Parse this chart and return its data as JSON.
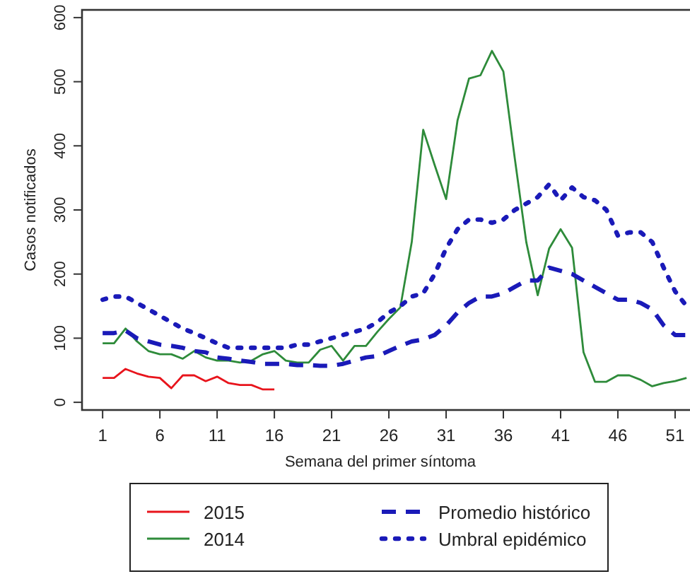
{
  "chart_data": {
    "type": "line",
    "xlabel": "Semana del primer síntoma",
    "ylabel": "Casos notificados",
    "xlim": [
      -0.8,
      52.3
    ],
    "xticks": [
      1,
      6,
      11,
      16,
      21,
      26,
      31,
      36,
      41,
      46,
      51
    ],
    "ylim": [
      -12,
      612
    ],
    "yticks": [
      0,
      100,
      200,
      300,
      400,
      500,
      600
    ],
    "grid": false,
    "legend": "bottom",
    "series": [
      {
        "name": "2015",
        "color": "#e8141c",
        "line_style": "solid",
        "x": [
          1,
          2,
          3,
          4,
          5,
          6,
          7,
          8,
          9,
          10,
          11,
          12,
          13,
          14,
          15,
          16
        ],
        "values": [
          38,
          38,
          52,
          45,
          40,
          38,
          22,
          42,
          42,
          33,
          40,
          30,
          27,
          27,
          20,
          20
        ]
      },
      {
        "name": "2014",
        "color": "#2e8b3a",
        "line_style": "solid",
        "x": [
          1,
          2,
          3,
          4,
          5,
          6,
          7,
          8,
          9,
          10,
          11,
          12,
          13,
          14,
          15,
          16,
          17,
          18,
          19,
          20,
          21,
          22,
          23,
          24,
          25,
          26,
          27,
          28,
          29,
          30,
          31,
          32,
          33,
          34,
          35,
          36,
          37,
          38,
          39,
          40,
          41,
          42,
          43,
          44,
          45,
          46,
          47,
          48,
          49,
          50,
          51,
          52
        ],
        "values": [
          92,
          92,
          115,
          95,
          80,
          75,
          75,
          68,
          80,
          70,
          65,
          65,
          62,
          65,
          75,
          80,
          65,
          62,
          62,
          82,
          88,
          65,
          88,
          88,
          110,
          130,
          148,
          250,
          425,
          370,
          317,
          440,
          505,
          510,
          548,
          516,
          380,
          250,
          167,
          240,
          270,
          241,
          78,
          32,
          32,
          42,
          42,
          35,
          25,
          30,
          33,
          38
        ]
      },
      {
        "name": "Promedio histórico",
        "color": "#1a1ab8",
        "line_style": "dashed",
        "x": [
          1,
          2,
          3,
          4,
          5,
          6,
          7,
          8,
          9,
          10,
          11,
          12,
          13,
          14,
          15,
          16,
          17,
          18,
          19,
          20,
          21,
          22,
          23,
          24,
          25,
          26,
          27,
          28,
          29,
          30,
          31,
          32,
          33,
          34,
          35,
          36,
          37,
          38,
          39,
          40,
          41,
          42,
          43,
          44,
          45,
          46,
          47,
          48,
          49,
          50,
          51,
          52
        ],
        "values": [
          108,
          108,
          112,
          100,
          95,
          90,
          88,
          85,
          80,
          78,
          70,
          68,
          65,
          63,
          60,
          60,
          60,
          58,
          58,
          57,
          57,
          60,
          65,
          70,
          72,
          80,
          88,
          95,
          98,
          105,
          120,
          140,
          155,
          165,
          165,
          170,
          180,
          190,
          190,
          210,
          205,
          200,
          190,
          180,
          170,
          160,
          160,
          155,
          145,
          120,
          105,
          105
        ]
      },
      {
        "name": "Umbral epidémico",
        "color": "#1a1ab8",
        "line_style": "dotted",
        "x": [
          1,
          2,
          3,
          4,
          5,
          6,
          7,
          8,
          9,
          10,
          11,
          12,
          13,
          14,
          15,
          16,
          17,
          18,
          19,
          20,
          21,
          22,
          23,
          24,
          25,
          26,
          27,
          28,
          29,
          30,
          31,
          32,
          33,
          34,
          35,
          36,
          37,
          38,
          39,
          40,
          41,
          42,
          43,
          44,
          45,
          46,
          47,
          48,
          49,
          50,
          51,
          52
        ],
        "values": [
          160,
          165,
          165,
          155,
          145,
          135,
          125,
          115,
          108,
          100,
          92,
          85,
          85,
          85,
          85,
          85,
          85,
          90,
          90,
          95,
          100,
          105,
          110,
          115,
          125,
          140,
          150,
          165,
          170,
          200,
          240,
          270,
          285,
          285,
          280,
          285,
          300,
          310,
          320,
          340,
          315,
          335,
          320,
          315,
          300,
          260,
          265,
          265,
          250,
          210,
          173,
          150
        ]
      }
    ]
  }
}
